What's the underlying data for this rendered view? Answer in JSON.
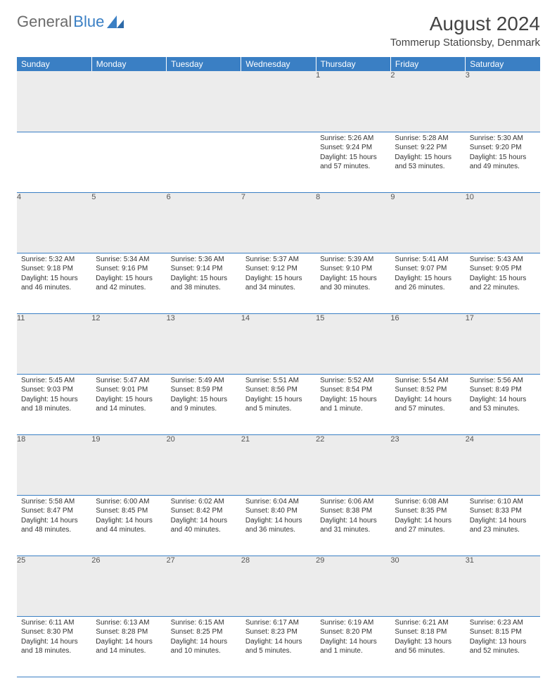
{
  "logo": {
    "part1": "General",
    "part2": "Blue"
  },
  "title": "August 2024",
  "location": "Tommerup Stationsby, Denmark",
  "colors": {
    "header_bg": "#3a7fc4",
    "daynum_bg": "#ececec",
    "rule": "#3a7fc4"
  },
  "dayNames": [
    "Sunday",
    "Monday",
    "Tuesday",
    "Wednesday",
    "Thursday",
    "Friday",
    "Saturday"
  ],
  "weeks": [
    [
      {
        "n": "",
        "sunrise": "",
        "sunset": "",
        "daylight": ""
      },
      {
        "n": "",
        "sunrise": "",
        "sunset": "",
        "daylight": ""
      },
      {
        "n": "",
        "sunrise": "",
        "sunset": "",
        "daylight": ""
      },
      {
        "n": "",
        "sunrise": "",
        "sunset": "",
        "daylight": ""
      },
      {
        "n": "1",
        "sunrise": "5:26 AM",
        "sunset": "9:24 PM",
        "daylight": "15 hours and 57 minutes."
      },
      {
        "n": "2",
        "sunrise": "5:28 AM",
        "sunset": "9:22 PM",
        "daylight": "15 hours and 53 minutes."
      },
      {
        "n": "3",
        "sunrise": "5:30 AM",
        "sunset": "9:20 PM",
        "daylight": "15 hours and 49 minutes."
      }
    ],
    [
      {
        "n": "4",
        "sunrise": "5:32 AM",
        "sunset": "9:18 PM",
        "daylight": "15 hours and 46 minutes."
      },
      {
        "n": "5",
        "sunrise": "5:34 AM",
        "sunset": "9:16 PM",
        "daylight": "15 hours and 42 minutes."
      },
      {
        "n": "6",
        "sunrise": "5:36 AM",
        "sunset": "9:14 PM",
        "daylight": "15 hours and 38 minutes."
      },
      {
        "n": "7",
        "sunrise": "5:37 AM",
        "sunset": "9:12 PM",
        "daylight": "15 hours and 34 minutes."
      },
      {
        "n": "8",
        "sunrise": "5:39 AM",
        "sunset": "9:10 PM",
        "daylight": "15 hours and 30 minutes."
      },
      {
        "n": "9",
        "sunrise": "5:41 AM",
        "sunset": "9:07 PM",
        "daylight": "15 hours and 26 minutes."
      },
      {
        "n": "10",
        "sunrise": "5:43 AM",
        "sunset": "9:05 PM",
        "daylight": "15 hours and 22 minutes."
      }
    ],
    [
      {
        "n": "11",
        "sunrise": "5:45 AM",
        "sunset": "9:03 PM",
        "daylight": "15 hours and 18 minutes."
      },
      {
        "n": "12",
        "sunrise": "5:47 AM",
        "sunset": "9:01 PM",
        "daylight": "15 hours and 14 minutes."
      },
      {
        "n": "13",
        "sunrise": "5:49 AM",
        "sunset": "8:59 PM",
        "daylight": "15 hours and 9 minutes."
      },
      {
        "n": "14",
        "sunrise": "5:51 AM",
        "sunset": "8:56 PM",
        "daylight": "15 hours and 5 minutes."
      },
      {
        "n": "15",
        "sunrise": "5:52 AM",
        "sunset": "8:54 PM",
        "daylight": "15 hours and 1 minute."
      },
      {
        "n": "16",
        "sunrise": "5:54 AM",
        "sunset": "8:52 PM",
        "daylight": "14 hours and 57 minutes."
      },
      {
        "n": "17",
        "sunrise": "5:56 AM",
        "sunset": "8:49 PM",
        "daylight": "14 hours and 53 minutes."
      }
    ],
    [
      {
        "n": "18",
        "sunrise": "5:58 AM",
        "sunset": "8:47 PM",
        "daylight": "14 hours and 48 minutes."
      },
      {
        "n": "19",
        "sunrise": "6:00 AM",
        "sunset": "8:45 PM",
        "daylight": "14 hours and 44 minutes."
      },
      {
        "n": "20",
        "sunrise": "6:02 AM",
        "sunset": "8:42 PM",
        "daylight": "14 hours and 40 minutes."
      },
      {
        "n": "21",
        "sunrise": "6:04 AM",
        "sunset": "8:40 PM",
        "daylight": "14 hours and 36 minutes."
      },
      {
        "n": "22",
        "sunrise": "6:06 AM",
        "sunset": "8:38 PM",
        "daylight": "14 hours and 31 minutes."
      },
      {
        "n": "23",
        "sunrise": "6:08 AM",
        "sunset": "8:35 PM",
        "daylight": "14 hours and 27 minutes."
      },
      {
        "n": "24",
        "sunrise": "6:10 AM",
        "sunset": "8:33 PM",
        "daylight": "14 hours and 23 minutes."
      }
    ],
    [
      {
        "n": "25",
        "sunrise": "6:11 AM",
        "sunset": "8:30 PM",
        "daylight": "14 hours and 18 minutes."
      },
      {
        "n": "26",
        "sunrise": "6:13 AM",
        "sunset": "8:28 PM",
        "daylight": "14 hours and 14 minutes."
      },
      {
        "n": "27",
        "sunrise": "6:15 AM",
        "sunset": "8:25 PM",
        "daylight": "14 hours and 10 minutes."
      },
      {
        "n": "28",
        "sunrise": "6:17 AM",
        "sunset": "8:23 PM",
        "daylight": "14 hours and 5 minutes."
      },
      {
        "n": "29",
        "sunrise": "6:19 AM",
        "sunset": "8:20 PM",
        "daylight": "14 hours and 1 minute."
      },
      {
        "n": "30",
        "sunrise": "6:21 AM",
        "sunset": "8:18 PM",
        "daylight": "13 hours and 56 minutes."
      },
      {
        "n": "31",
        "sunrise": "6:23 AM",
        "sunset": "8:15 PM",
        "daylight": "13 hours and 52 minutes."
      }
    ]
  ]
}
